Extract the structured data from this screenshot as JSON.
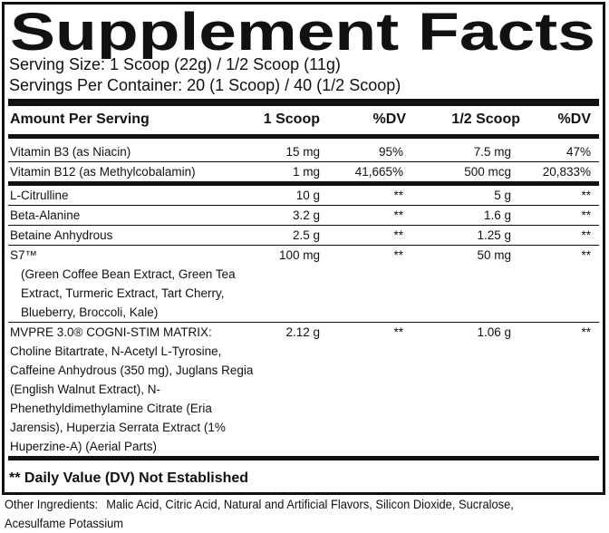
{
  "title": "Supplement Facts",
  "serving_size": "Serving Size: 1 Scoop (22g) / 1/2 Scoop (11g)",
  "servings_per_container": "Servings Per Container: 20 (1 Scoop) / 40 (1/2 Scoop)",
  "table": {
    "header": [
      "Amount Per Serving",
      "1 Scoop",
      "%DV",
      "1/2 Scoop",
      "%DV"
    ],
    "rows": [
      {
        "name": "Vitamin B3 (as Niacin)",
        "cells": [
          "15 mg",
          "95%",
          "7.5 mg",
          "47%"
        ]
      },
      {
        "name": "Vitamin B12 (as Methylcobalamin)",
        "cells": [
          "1 mg",
          "41,665%",
          "500 mcg",
          "20,833%"
        ]
      },
      {
        "name": "L-Citrulline",
        "cells": [
          "10 g",
          "**",
          "5 g",
          "**"
        ]
      },
      {
        "name": "Beta-Alanine",
        "cells": [
          "3.2 g",
          "**",
          "1.6 g",
          "**"
        ]
      },
      {
        "name": "Betaine Anhydrous",
        "cells": [
          "2.5 g",
          "**",
          "1.25 g",
          "**"
        ]
      },
      {
        "name": "S7™",
        "detail": "(Green Coffee Bean Extract, Green Tea Extract, Turmeric Extract, Tart Cherry, Blueberry, Broccoli, Kale)",
        "cells": [
          "100 mg",
          "**",
          "50 mg",
          "**"
        ]
      },
      {
        "name": "MVPRE 3.0® COGNI-STIM MATRIX:",
        "detail": "Choline Bitartrate, N-Acetyl L-Tyrosine, Caffeine Anhydrous (350 mg), Juglans Regia (English Walnut Extract), N-Phenethyldimethylamine Citrate (Eria Jarensis), Huperzia Serrata Extract (1% Huperzine-A) (Aerial Parts)",
        "cells": [
          "2.12 g",
          "**",
          "1.06 g",
          "**"
        ]
      }
    ]
  },
  "footnote": "** Daily Value (DV)  Not Established",
  "other_ingredients": {
    "label": "Other Ingredients:",
    "text": "Malic Acid, Citric Acid, Natural and Artificial Flavors, Silicon Dioxide, Sucralose, Acesulfame Potassium"
  }
}
